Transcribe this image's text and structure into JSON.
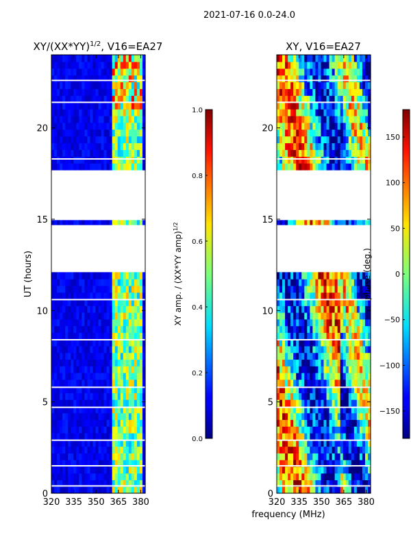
{
  "figure": {
    "suptitle": "2021-07-16 0.0-24.0",
    "shared_xlabel": "frequency (MHz)"
  },
  "colormap": "jet",
  "chart_data": [
    {
      "type": "heatmap",
      "title": "XY/(XX*YY)^1/2, V16=EA27",
      "title_main": "XY/(XX*YY)",
      "title_sup": "1/2",
      "title_rest": ", V16=EA27",
      "xlabel": "",
      "ylabel": "UT (hours)",
      "xlim": [
        320,
        383
      ],
      "ylim": [
        0,
        24
      ],
      "xticks": [
        320,
        335,
        350,
        365,
        380
      ],
      "yticks": [
        0,
        5,
        10,
        15,
        20
      ],
      "data_bands_hours": [
        [
          0,
          12.1
        ],
        [
          14.7,
          14.95
        ],
        [
          17.7,
          24
        ]
      ],
      "horizontal_gaps_hours": [
        0.4,
        1.5,
        2.9,
        4.7,
        5.8,
        8.4,
        10.6,
        15.0,
        18.3,
        21.4,
        22.6
      ],
      "bright_channel_region_MHz": [
        360,
        380
      ],
      "colorbar": {
        "label": "XY amp. / (XX*YY amp)^1/2",
        "label_main": "XY amp. / (XX*YY amp)",
        "label_sup": "1/2",
        "vmin": 0.0,
        "vmax": 1.0,
        "ticks": [
          0.0,
          0.2,
          0.4,
          0.6,
          0.8,
          1.0
        ],
        "tick_labels": [
          "0.0",
          "0.2",
          "0.4",
          "0.6",
          "0.8",
          "1.0"
        ]
      }
    },
    {
      "type": "heatmap",
      "title": "XY, V16=EA27",
      "xlabel": "frequency (MHz)",
      "ylabel": "",
      "xlim": [
        320,
        383
      ],
      "ylim": [
        0,
        24
      ],
      "xticks": [
        320,
        335,
        350,
        365,
        380
      ],
      "yticks": [
        0,
        5,
        10,
        15,
        20
      ],
      "data_bands_hours": [
        [
          0,
          12.1
        ],
        [
          14.7,
          14.95
        ],
        [
          17.7,
          24
        ]
      ],
      "horizontal_gaps_hours": [
        0.4,
        1.5,
        2.9,
        4.7,
        5.8,
        8.4,
        10.6,
        15.0,
        18.3,
        21.4,
        22.6
      ],
      "colorbar": {
        "label": "phase (deg.)",
        "vmin": -180,
        "vmax": 180,
        "ticks": [
          -150,
          -100,
          -50,
          0,
          50,
          100,
          150
        ],
        "tick_labels": [
          "−150",
          "−100",
          "−50",
          "0",
          "50",
          "100",
          "150"
        ]
      }
    }
  ]
}
